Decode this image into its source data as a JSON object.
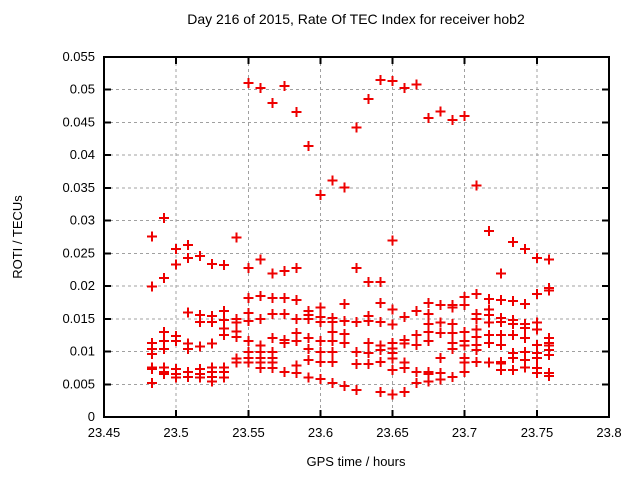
{
  "chart_data": {
    "type": "scatter",
    "title": "Day 216 of 2015, Rate Of TEC Index for receiver hob2",
    "xlabel": "GPS time / hours",
    "ylabel": "ROTI / TECUs",
    "xlim": [
      23.45,
      23.8
    ],
    "ylim": [
      0,
      0.055
    ],
    "xticks": [
      23.45,
      23.5,
      23.55,
      23.6,
      23.65,
      23.7,
      23.75,
      23.8
    ],
    "xtick_labels": [
      "23.45",
      "23.5",
      "23.55",
      "23.6",
      "23.65",
      "23.7",
      "23.75",
      "23.8"
    ],
    "yticks": [
      0,
      0.005,
      0.01,
      0.015,
      0.02,
      0.025,
      0.03,
      0.035,
      0.04,
      0.045,
      0.05,
      0.055
    ],
    "ytick_labels": [
      "0",
      "0.005",
      "0.01",
      "0.015",
      "0.02",
      "0.025",
      "0.03",
      "0.035",
      "0.04",
      "0.045",
      "0.05",
      "0.055"
    ],
    "grid": true,
    "grid_style": "dashed",
    "legend_position": "none",
    "colors": {
      "marker": "#ee0000",
      "grid": "#a0a0a0",
      "axis": "#000000",
      "background": "#ffffff"
    },
    "marker": {
      "shape": "plus",
      "size": 11,
      "stroke_width": 2
    },
    "series": [
      {
        "name": "ROTI",
        "points": [
          [
            23.4833,
            0.0276
          ],
          [
            23.4833,
            0.0199
          ],
          [
            23.4833,
            0.0113
          ],
          [
            23.4833,
            0.0104
          ],
          [
            23.4833,
            0.0096
          ],
          [
            23.4833,
            0.0076
          ],
          [
            23.4833,
            0.0073
          ],
          [
            23.4833,
            0.0052
          ],
          [
            23.4917,
            0.0304
          ],
          [
            23.4917,
            0.0212
          ],
          [
            23.4917,
            0.013
          ],
          [
            23.4917,
            0.0116
          ],
          [
            23.4917,
            0.0104
          ],
          [
            23.4917,
            0.0076
          ],
          [
            23.4917,
            0.0069
          ],
          [
            23.4917,
            0.0066
          ],
          [
            23.5,
            0.0257
          ],
          [
            23.5,
            0.0233
          ],
          [
            23.5,
            0.0124
          ],
          [
            23.5,
            0.0116
          ],
          [
            23.5,
            0.0073
          ],
          [
            23.5,
            0.0066
          ],
          [
            23.5,
            0.006
          ],
          [
            23.5083,
            0.0263
          ],
          [
            23.5083,
            0.0243
          ],
          [
            23.5083,
            0.016
          ],
          [
            23.5083,
            0.0112
          ],
          [
            23.5083,
            0.0104
          ],
          [
            23.5083,
            0.0069
          ],
          [
            23.5083,
            0.0061
          ],
          [
            23.5167,
            0.0246
          ],
          [
            23.5167,
            0.0156
          ],
          [
            23.5167,
            0.0145
          ],
          [
            23.5167,
            0.0108
          ],
          [
            23.5167,
            0.0073
          ],
          [
            23.5167,
            0.0066
          ],
          [
            23.5167,
            0.006
          ],
          [
            23.525,
            0.0234
          ],
          [
            23.525,
            0.0154
          ],
          [
            23.525,
            0.0145
          ],
          [
            23.525,
            0.0112
          ],
          [
            23.525,
            0.0076
          ],
          [
            23.525,
            0.0069
          ],
          [
            23.525,
            0.0061
          ],
          [
            23.525,
            0.0054
          ],
          [
            23.5333,
            0.0232
          ],
          [
            23.5333,
            0.0162
          ],
          [
            23.5333,
            0.0148
          ],
          [
            23.5333,
            0.0135
          ],
          [
            23.5333,
            0.0125
          ],
          [
            23.5333,
            0.0076
          ],
          [
            23.5333,
            0.0069
          ],
          [
            23.5333,
            0.006
          ],
          [
            23.5417,
            0.0274
          ],
          [
            23.5417,
            0.015
          ],
          [
            23.5417,
            0.0144
          ],
          [
            23.5417,
            0.0131
          ],
          [
            23.5417,
            0.0122
          ],
          [
            23.5417,
            0.0089
          ],
          [
            23.5417,
            0.0083
          ],
          [
            23.55,
            0.051
          ],
          [
            23.55,
            0.0228
          ],
          [
            23.55,
            0.0182
          ],
          [
            23.55,
            0.0159
          ],
          [
            23.55,
            0.0147
          ],
          [
            23.55,
            0.0116
          ],
          [
            23.55,
            0.0099
          ],
          [
            23.55,
            0.009
          ],
          [
            23.55,
            0.0083
          ],
          [
            23.5583,
            0.0503
          ],
          [
            23.5583,
            0.0241
          ],
          [
            23.5583,
            0.0185
          ],
          [
            23.5583,
            0.015
          ],
          [
            23.5583,
            0.0109
          ],
          [
            23.5583,
            0.0099
          ],
          [
            23.5583,
            0.009
          ],
          [
            23.5583,
            0.0083
          ],
          [
            23.5583,
            0.0075
          ],
          [
            23.5667,
            0.048
          ],
          [
            23.5667,
            0.0219
          ],
          [
            23.5667,
            0.0182
          ],
          [
            23.5667,
            0.0157
          ],
          [
            23.5667,
            0.0121
          ],
          [
            23.5667,
            0.0099
          ],
          [
            23.5667,
            0.009
          ],
          [
            23.5667,
            0.0083
          ],
          [
            23.5667,
            0.0075
          ],
          [
            23.575,
            0.0506
          ],
          [
            23.575,
            0.0223
          ],
          [
            23.575,
            0.0182
          ],
          [
            23.575,
            0.0157
          ],
          [
            23.575,
            0.0118
          ],
          [
            23.575,
            0.0113
          ],
          [
            23.575,
            0.0069
          ],
          [
            23.5833,
            0.0466
          ],
          [
            23.5833,
            0.0228
          ],
          [
            23.5833,
            0.0179
          ],
          [
            23.5833,
            0.015
          ],
          [
            23.5833,
            0.0128
          ],
          [
            23.5833,
            0.0116
          ],
          [
            23.5833,
            0.0079
          ],
          [
            23.5833,
            0.0067
          ],
          [
            23.5917,
            0.0414
          ],
          [
            23.5917,
            0.0162
          ],
          [
            23.5917,
            0.0156
          ],
          [
            23.5917,
            0.015
          ],
          [
            23.5917,
            0.0121
          ],
          [
            23.5917,
            0.0104
          ],
          [
            23.5917,
            0.0087
          ],
          [
            23.5917,
            0.006
          ],
          [
            23.6,
            0.0339
          ],
          [
            23.6,
            0.0167
          ],
          [
            23.6,
            0.0153
          ],
          [
            23.6,
            0.0145
          ],
          [
            23.6,
            0.0116
          ],
          [
            23.6,
            0.0099
          ],
          [
            23.6,
            0.0084
          ],
          [
            23.6,
            0.0058
          ],
          [
            23.6083,
            0.0361
          ],
          [
            23.6083,
            0.0151
          ],
          [
            23.6083,
            0.0145
          ],
          [
            23.6083,
            0.013
          ],
          [
            23.6083,
            0.0116
          ],
          [
            23.6083,
            0.0099
          ],
          [
            23.6083,
            0.0084
          ],
          [
            23.6083,
            0.0052
          ],
          [
            23.6167,
            0.0351
          ],
          [
            23.6167,
            0.0173
          ],
          [
            23.6167,
            0.0147
          ],
          [
            23.6167,
            0.0127
          ],
          [
            23.6167,
            0.0113
          ],
          [
            23.6167,
            0.0047
          ],
          [
            23.625,
            0.0442
          ],
          [
            23.625,
            0.0228
          ],
          [
            23.625,
            0.0145
          ],
          [
            23.625,
            0.0099
          ],
          [
            23.625,
            0.0081
          ],
          [
            23.625,
            0.0041
          ],
          [
            23.6333,
            0.0486
          ],
          [
            23.6333,
            0.0206
          ],
          [
            23.6333,
            0.0154
          ],
          [
            23.6333,
            0.0147
          ],
          [
            23.6333,
            0.0113
          ],
          [
            23.6333,
            0.0098
          ],
          [
            23.6333,
            0.0081
          ],
          [
            23.6417,
            0.0515
          ],
          [
            23.6417,
            0.0206
          ],
          [
            23.6417,
            0.0174
          ],
          [
            23.6417,
            0.0145
          ],
          [
            23.6417,
            0.0109
          ],
          [
            23.6417,
            0.0102
          ],
          [
            23.6417,
            0.0084
          ],
          [
            23.6417,
            0.0038
          ],
          [
            23.65,
            0.0513
          ],
          [
            23.65,
            0.027
          ],
          [
            23.65,
            0.0164
          ],
          [
            23.65,
            0.0141
          ],
          [
            23.65,
            0.0113
          ],
          [
            23.65,
            0.0105
          ],
          [
            23.65,
            0.0098
          ],
          [
            23.65,
            0.0089
          ],
          [
            23.65,
            0.0072
          ],
          [
            23.65,
            0.0034
          ],
          [
            23.6583,
            0.0503
          ],
          [
            23.6583,
            0.0153
          ],
          [
            23.6583,
            0.0118
          ],
          [
            23.6583,
            0.0112
          ],
          [
            23.6583,
            0.0083
          ],
          [
            23.6583,
            0.0075
          ],
          [
            23.6583,
            0.0038
          ],
          [
            23.6667,
            0.0508
          ],
          [
            23.6667,
            0.0162
          ],
          [
            23.6667,
            0.0125
          ],
          [
            23.6667,
            0.011
          ],
          [
            23.6667,
            0.0069
          ],
          [
            23.6667,
            0.0052
          ],
          [
            23.675,
            0.0457
          ],
          [
            23.675,
            0.0174
          ],
          [
            23.675,
            0.0157
          ],
          [
            23.675,
            0.0142
          ],
          [
            23.675,
            0.013
          ],
          [
            23.675,
            0.0116
          ],
          [
            23.675,
            0.0069
          ],
          [
            23.675,
            0.0066
          ],
          [
            23.675,
            0.0054
          ],
          [
            23.6833,
            0.0467
          ],
          [
            23.6833,
            0.0171
          ],
          [
            23.6833,
            0.0144
          ],
          [
            23.6833,
            0.0128
          ],
          [
            23.6833,
            0.009
          ],
          [
            23.6833,
            0.0067
          ],
          [
            23.6833,
            0.0057
          ],
          [
            23.6917,
            0.0454
          ],
          [
            23.6917,
            0.0171
          ],
          [
            23.6917,
            0.0167
          ],
          [
            23.6917,
            0.0142
          ],
          [
            23.6917,
            0.0128
          ],
          [
            23.6917,
            0.0113
          ],
          [
            23.6917,
            0.0104
          ],
          [
            23.6917,
            0.0061
          ],
          [
            23.7,
            0.046
          ],
          [
            23.7,
            0.0183
          ],
          [
            23.7,
            0.0171
          ],
          [
            23.7,
            0.013
          ],
          [
            23.7,
            0.0116
          ],
          [
            23.7,
            0.0109
          ],
          [
            23.7,
            0.009
          ],
          [
            23.7,
            0.0083
          ],
          [
            23.7,
            0.0069
          ],
          [
            23.7083,
            0.0354
          ],
          [
            23.7083,
            0.0188
          ],
          [
            23.7083,
            0.0157
          ],
          [
            23.7083,
            0.015
          ],
          [
            23.7083,
            0.0134
          ],
          [
            23.7083,
            0.0122
          ],
          [
            23.7083,
            0.011
          ],
          [
            23.7083,
            0.0102
          ],
          [
            23.7083,
            0.0084
          ],
          [
            23.7167,
            0.0284
          ],
          [
            23.7167,
            0.018
          ],
          [
            23.7167,
            0.0164
          ],
          [
            23.7167,
            0.0156
          ],
          [
            23.7167,
            0.0144
          ],
          [
            23.7167,
            0.0125
          ],
          [
            23.7167,
            0.0113
          ],
          [
            23.7167,
            0.0083
          ],
          [
            23.725,
            0.0219
          ],
          [
            23.725,
            0.0179
          ],
          [
            23.725,
            0.0151
          ],
          [
            23.725,
            0.0145
          ],
          [
            23.725,
            0.0125
          ],
          [
            23.725,
            0.011
          ],
          [
            23.725,
            0.0084
          ],
          [
            23.725,
            0.0082
          ],
          [
            23.725,
            0.0072
          ],
          [
            23.7333,
            0.0267
          ],
          [
            23.7333,
            0.0177
          ],
          [
            23.7333,
            0.0148
          ],
          [
            23.7333,
            0.0142
          ],
          [
            23.7333,
            0.0125
          ],
          [
            23.7333,
            0.0098
          ],
          [
            23.7333,
            0.009
          ],
          [
            23.7333,
            0.0072
          ],
          [
            23.7417,
            0.0257
          ],
          [
            23.7417,
            0.0173
          ],
          [
            23.7417,
            0.0142
          ],
          [
            23.7417,
            0.0136
          ],
          [
            23.7417,
            0.0121
          ],
          [
            23.7417,
            0.0099
          ],
          [
            23.7417,
            0.0087
          ],
          [
            23.7417,
            0.0076
          ],
          [
            23.75,
            0.0243
          ],
          [
            23.75,
            0.0188
          ],
          [
            23.75,
            0.0144
          ],
          [
            23.75,
            0.0134
          ],
          [
            23.75,
            0.011
          ],
          [
            23.75,
            0.0098
          ],
          [
            23.75,
            0.009
          ],
          [
            23.75,
            0.0075
          ],
          [
            23.75,
            0.0067
          ],
          [
            23.7583,
            0.0241
          ],
          [
            23.7583,
            0.0197
          ],
          [
            23.7583,
            0.0193
          ],
          [
            23.7583,
            0.0121
          ],
          [
            23.7583,
            0.0113
          ],
          [
            23.7583,
            0.0109
          ],
          [
            23.7583,
            0.0102
          ],
          [
            23.7583,
            0.0095
          ],
          [
            23.7583,
            0.0067
          ],
          [
            23.7583,
            0.0063
          ]
        ]
      }
    ]
  }
}
